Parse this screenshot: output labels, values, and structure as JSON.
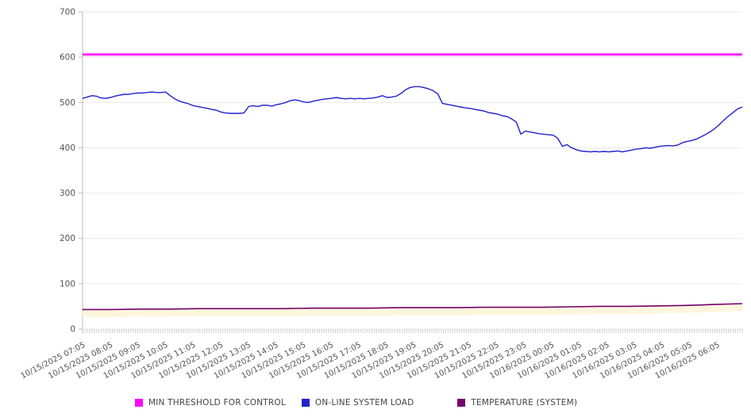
{
  "chart_data": {
    "type": "line",
    "title": "",
    "grid": "horizontal",
    "legend_position": "bottom",
    "y_axis": {
      "min": 0,
      "max": 700,
      "tick_interval": 100,
      "tick_labels": [
        "0",
        "100",
        "200",
        "300",
        "400",
        "500",
        "600",
        "700"
      ]
    },
    "x_axis": {
      "minor_tick_count": 288,
      "minor_tick_interval_minutes": 5,
      "total_span_minutes": 1435,
      "label_interval_minutes": 60,
      "tick_labels": [
        "10/15/2025 07:05",
        "10/15/2025 08:05",
        "10/15/2025 09:05",
        "10/15/2025 10:05",
        "10/15/2025 11:05",
        "10/15/2025 12:05",
        "10/15/2025 13:05",
        "10/15/2025 14:05",
        "10/15/2025 15:05",
        "10/15/2025 16:05",
        "10/15/2025 17:05",
        "10/15/2025 18:05",
        "10/15/2025 19:05",
        "10/15/2025 20:05",
        "10/15/2025 21:05",
        "10/15/2025 22:05",
        "10/15/2025 23:05",
        "10/16/2025 00:05",
        "10/16/2025 01:05",
        "10/16/2025 02:05",
        "10/16/2025 03:05",
        "10/16/2025 04:05",
        "10/16/2025 05:05",
        "10/16/2025 06:05"
      ]
    },
    "series": [
      {
        "name": "MIN THRESHOLD FOR CONTROL",
        "color": "#ff00ff",
        "stroke_width": 2.2,
        "values": [
          606,
          606
        ]
      },
      {
        "name": "ON-LINE SYSTEM LOAD",
        "color": "#2222cd",
        "stroke_width": 1.4,
        "values": [
          509,
          512,
          515,
          514,
          510,
          509,
          511,
          514,
          516,
          518,
          518,
          520,
          521,
          521,
          522,
          523,
          522,
          522,
          523,
          515,
          508,
          503,
          500,
          497,
          493,
          491,
          489,
          487,
          485,
          483,
          479,
          477,
          476,
          476,
          476,
          477,
          491,
          493,
          491,
          494,
          494,
          492,
          495,
          497,
          500,
          504,
          506,
          504,
          501,
          500,
          503,
          505,
          507,
          508,
          509,
          511,
          509,
          508,
          509,
          508,
          509,
          508,
          509,
          510,
          512,
          515,
          511,
          512,
          514,
          520,
          528,
          533,
          535,
          535,
          533,
          530,
          526,
          519,
          498,
          496,
          494,
          492,
          490,
          488,
          487,
          485,
          483,
          481,
          478,
          476,
          474,
          471,
          469,
          464,
          457,
          430,
          437,
          435,
          433,
          431,
          430,
          429,
          428,
          421,
          403,
          407,
          400,
          396,
          393,
          392,
          391,
          392,
          391,
          392,
          391,
          392,
          393,
          391,
          393,
          395,
          397,
          398,
          400,
          399,
          401,
          403,
          404,
          405,
          404,
          406,
          411,
          414,
          416,
          419,
          424,
          429,
          435,
          442,
          451,
          461,
          470,
          478,
          486,
          490
        ]
      },
      {
        "name": "TEMPERATURE (SYSTEM)",
        "color": "#75006e",
        "stroke_width": 1.6,
        "values": [
          43,
          43,
          44,
          44,
          45,
          45,
          45,
          45,
          46,
          46,
          46,
          47,
          47,
          47,
          48,
          48,
          48,
          49,
          50,
          50,
          51,
          52,
          54,
          56
        ]
      }
    ],
    "colors": {
      "grid_line": "#e9e9e9",
      "axis_line": "#bbbbbb",
      "minor_tick": "#c4c4c4",
      "axis_label_text": "#555555",
      "legend_text": "#444444",
      "temperature_underlay": "#fdf6dd"
    }
  }
}
